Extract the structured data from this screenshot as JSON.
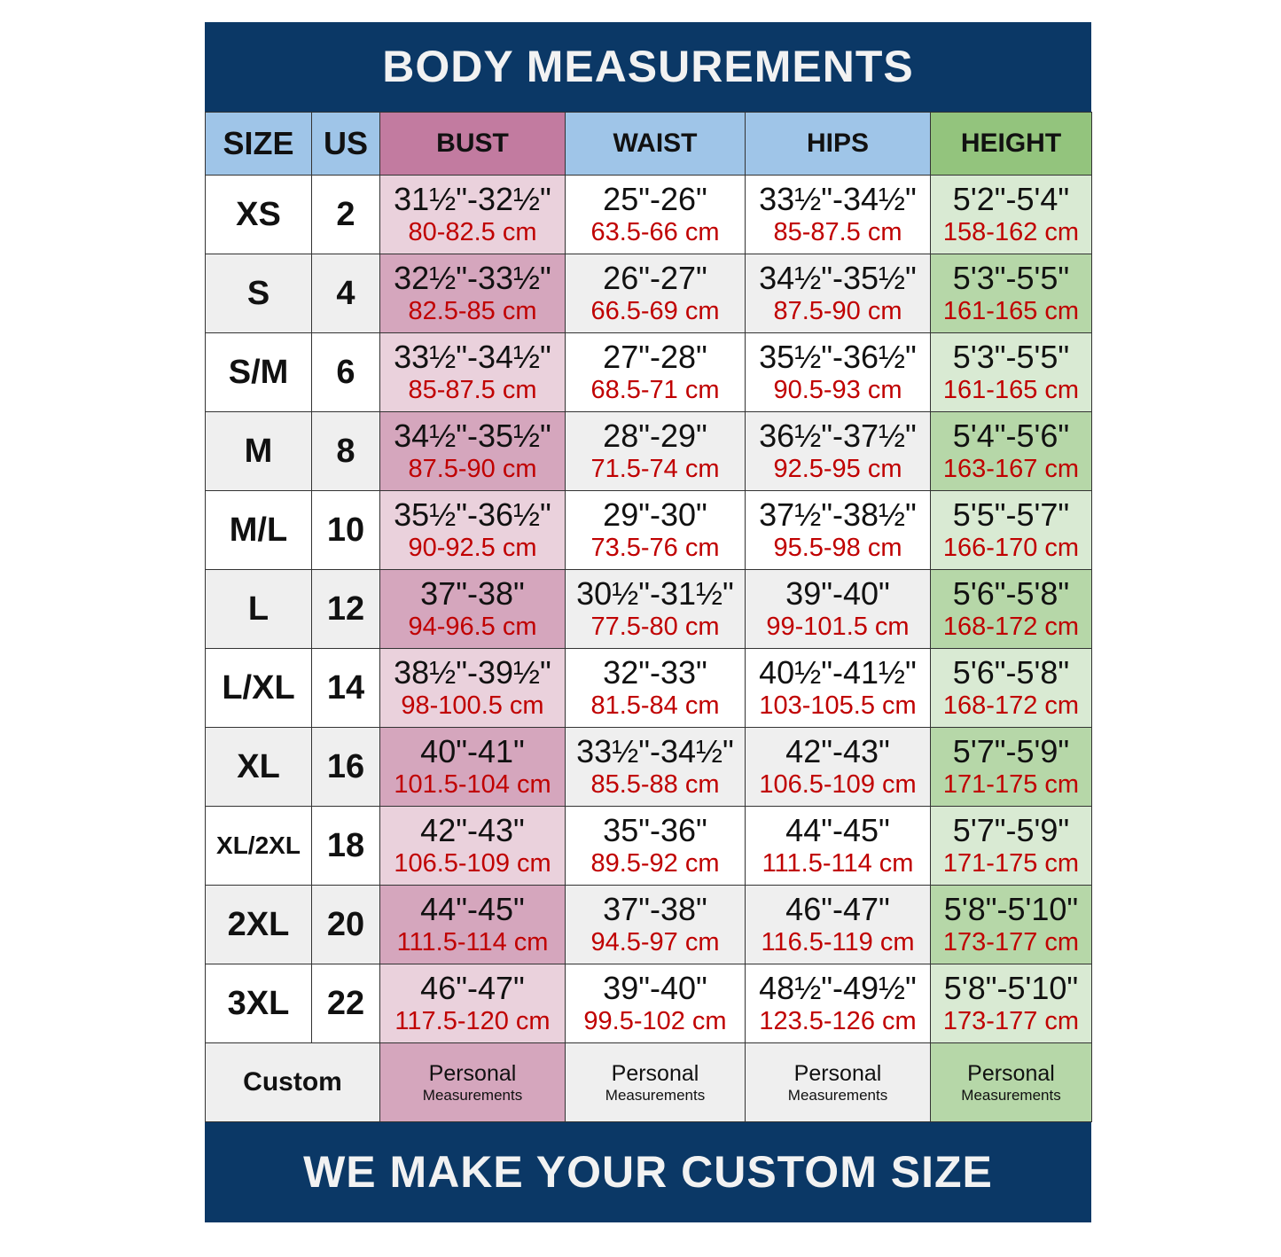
{
  "title": "BODY MEASUREMENTS",
  "footer": "WE MAKE YOUR CUSTOM SIZE",
  "colors": {
    "band": "#0b3866",
    "header_blue": "#9fc5e8",
    "bust": "#c27ba0",
    "height": "#93c47d",
    "metric_text": "#c00000"
  },
  "headers": [
    "SIZE",
    "US",
    "BUST",
    "WAIST",
    "HIPS",
    "HEIGHT"
  ],
  "rows": [
    {
      "size": "XS",
      "us": "2",
      "bust": [
        "31½\"-32½\"",
        "80-82.5 cm"
      ],
      "waist": [
        "25\"-26\"",
        "63.5-66 cm"
      ],
      "hips": [
        "33½\"-34½\"",
        "85-87.5 cm"
      ],
      "height": [
        "5'2\"-5'4\"",
        "158-162 cm"
      ]
    },
    {
      "size": "S",
      "us": "4",
      "bust": [
        "32½\"-33½\"",
        "82.5-85 cm"
      ],
      "waist": [
        "26\"-27\"",
        "66.5-69 cm"
      ],
      "hips": [
        "34½\"-35½\"",
        "87.5-90 cm"
      ],
      "height": [
        "5'3\"-5'5\"",
        "161-165 cm"
      ]
    },
    {
      "size": "S/M",
      "us": "6",
      "bust": [
        "33½\"-34½\"",
        "85-87.5 cm"
      ],
      "waist": [
        "27\"-28\"",
        "68.5-71 cm"
      ],
      "hips": [
        "35½\"-36½\"",
        "90.5-93 cm"
      ],
      "height": [
        "5'3\"-5'5\"",
        "161-165 cm"
      ]
    },
    {
      "size": "M",
      "us": "8",
      "bust": [
        "34½\"-35½\"",
        "87.5-90 cm"
      ],
      "waist": [
        "28\"-29\"",
        "71.5-74 cm"
      ],
      "hips": [
        "36½\"-37½\"",
        "92.5-95 cm"
      ],
      "height": [
        "5'4\"-5'6\"",
        "163-167 cm"
      ]
    },
    {
      "size": "M/L",
      "us": "10",
      "bust": [
        "35½\"-36½\"",
        "90-92.5 cm"
      ],
      "waist": [
        "29\"-30\"",
        "73.5-76 cm"
      ],
      "hips": [
        "37½\"-38½\"",
        "95.5-98 cm"
      ],
      "height": [
        "5'5\"-5'7\"",
        "166-170 cm"
      ]
    },
    {
      "size": "L",
      "us": "12",
      "bust": [
        "37\"-38\"",
        "94-96.5 cm"
      ],
      "waist": [
        "30½\"-31½\"",
        "77.5-80 cm"
      ],
      "hips": [
        "39\"-40\"",
        "99-101.5 cm"
      ],
      "height": [
        "5'6\"-5'8\"",
        "168-172 cm"
      ]
    },
    {
      "size": "L/XL",
      "us": "14",
      "bust": [
        "38½\"-39½\"",
        "98-100.5 cm"
      ],
      "waist": [
        "32\"-33\"",
        "81.5-84 cm"
      ],
      "hips": [
        "40½\"-41½\"",
        "103-105.5 cm"
      ],
      "height": [
        "5'6\"-5'8\"",
        "168-172 cm"
      ]
    },
    {
      "size": "XL",
      "us": "16",
      "bust": [
        "40\"-41\"",
        "101.5-104 cm"
      ],
      "waist": [
        "33½\"-34½\"",
        "85.5-88 cm"
      ],
      "hips": [
        "42\"-43\"",
        "106.5-109 cm"
      ],
      "height": [
        "5'7\"-5'9\"",
        "171-175 cm"
      ]
    },
    {
      "size": "XL/2XL",
      "us": "18",
      "bust": [
        "42\"-43\"",
        "106.5-109 cm"
      ],
      "waist": [
        "35\"-36\"",
        "89.5-92 cm"
      ],
      "hips": [
        "44\"-45\"",
        "111.5-114 cm"
      ],
      "height": [
        "5'7\"-5'9\"",
        "171-175 cm"
      ]
    },
    {
      "size": "2XL",
      "us": "20",
      "bust": [
        "44\"-45\"",
        "111.5-114 cm"
      ],
      "waist": [
        "37\"-38\"",
        "94.5-97 cm"
      ],
      "hips": [
        "46\"-47\"",
        "116.5-119 cm"
      ],
      "height": [
        "5'8\"-5'10\"",
        "173-177 cm"
      ]
    },
    {
      "size": "3XL",
      "us": "22",
      "bust": [
        "46\"-47\"",
        "117.5-120 cm"
      ],
      "waist": [
        "39\"-40\"",
        "99.5-102 cm"
      ],
      "hips": [
        "48½\"-49½\"",
        "123.5-126 cm"
      ],
      "height": [
        "5'8\"-5'10\"",
        "173-177 cm"
      ]
    }
  ],
  "custom": {
    "label": "Custom",
    "line1": "Personal",
    "line2": "Measurements"
  }
}
